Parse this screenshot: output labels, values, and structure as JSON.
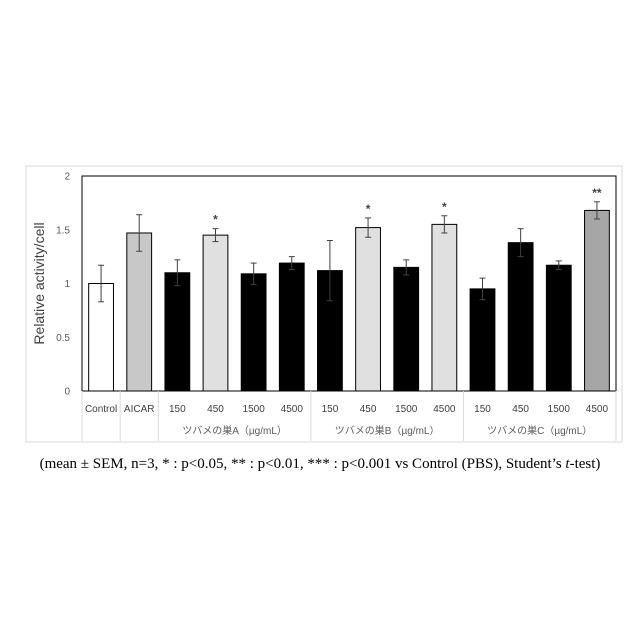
{
  "chart_data": {
    "type": "bar",
    "ylabel": "Relative activity/cell",
    "ylim": [
      0,
      2
    ],
    "yticks": [
      "0",
      "0.5",
      "1",
      "1.5",
      "2"
    ],
    "categories": [
      "Control",
      "AICAR",
      "150",
      "450",
      "1500",
      "4500",
      "150",
      "450",
      "1500",
      "4500",
      "150",
      "450",
      "1500",
      "4500"
    ],
    "values": [
      1.0,
      1.47,
      1.1,
      1.45,
      1.09,
      1.19,
      1.12,
      1.52,
      1.15,
      1.55,
      0.95,
      1.38,
      1.17,
      1.68
    ],
    "errors": [
      0.17,
      0.17,
      0.12,
      0.06,
      0.1,
      0.06,
      0.28,
      0.09,
      0.07,
      0.08,
      0.1,
      0.13,
      0.04,
      0.08
    ],
    "significance": [
      "",
      "",
      "",
      "*",
      "",
      "",
      "",
      "*",
      "",
      "*",
      "",
      "",
      "",
      "**"
    ],
    "bar_colors": [
      "#ffffff",
      "#c8c8c8",
      "#000000",
      "#e0e0e0",
      "#000000",
      "#000000",
      "#000000",
      "#e0e0e0",
      "#000000",
      "#e0e0e0",
      "#000000",
      "#000000",
      "#000000",
      "#a6a6a6"
    ],
    "groups": [
      {
        "label": "ツバメの巣A（µg/mL）",
        "start": 2,
        "end": 5
      },
      {
        "label": "ツバメの巣B（µg/mL）",
        "start": 6,
        "end": 9
      },
      {
        "label": "ツバメの巣C（µg/mL）",
        "start": 10,
        "end": 13
      }
    ],
    "grid": false
  },
  "footnote_parts": {
    "pre": "(mean ± SEM, n=3, * : p<0.05, ** : p<0.01, *** : p<0.001 vs Control (PBS), Student’s ",
    "italic": "t",
    "post": "-test)"
  }
}
